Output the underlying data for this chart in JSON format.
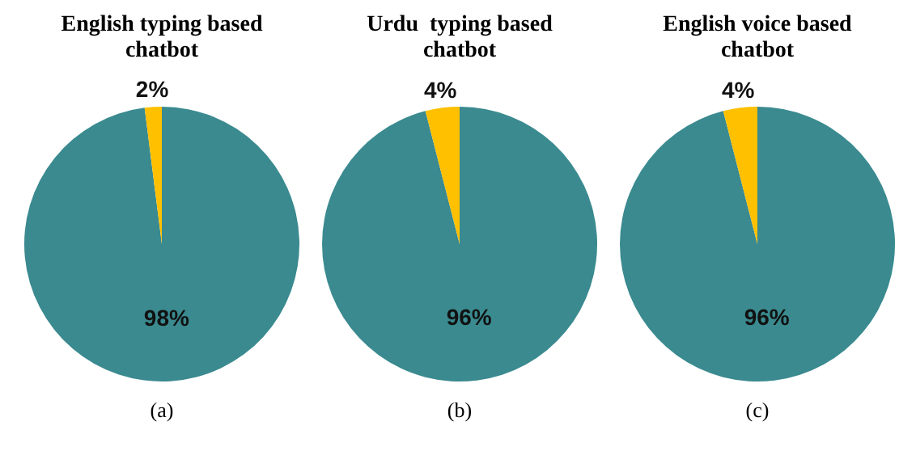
{
  "chart_data": [
    {
      "type": "pie",
      "title": "English typing based chatbot",
      "categories": [
        null,
        null
      ],
      "values": [
        98,
        2
      ],
      "colors": [
        "#3a8a8f",
        "#ffc000"
      ],
      "value_labels": [
        "98%",
        "2%"
      ],
      "annotations": [
        "(a)"
      ]
    },
    {
      "type": "pie",
      "title": "Urdu  typing based chatbot",
      "categories": [
        null,
        null
      ],
      "values": [
        96,
        4
      ],
      "colors": [
        "#3a8a8f",
        "#ffc000"
      ],
      "value_labels": [
        "96%",
        "4%"
      ],
      "annotations": [
        "(b)"
      ]
    },
    {
      "type": "pie",
      "title": "English voice based chatbot",
      "categories": [
        null,
        null
      ],
      "values": [
        96,
        4
      ],
      "colors": [
        "#3a8a8f",
        "#ffc000"
      ],
      "value_labels": [
        "96%",
        "4%"
      ],
      "annotations": [
        "(c)"
      ]
    }
  ]
}
